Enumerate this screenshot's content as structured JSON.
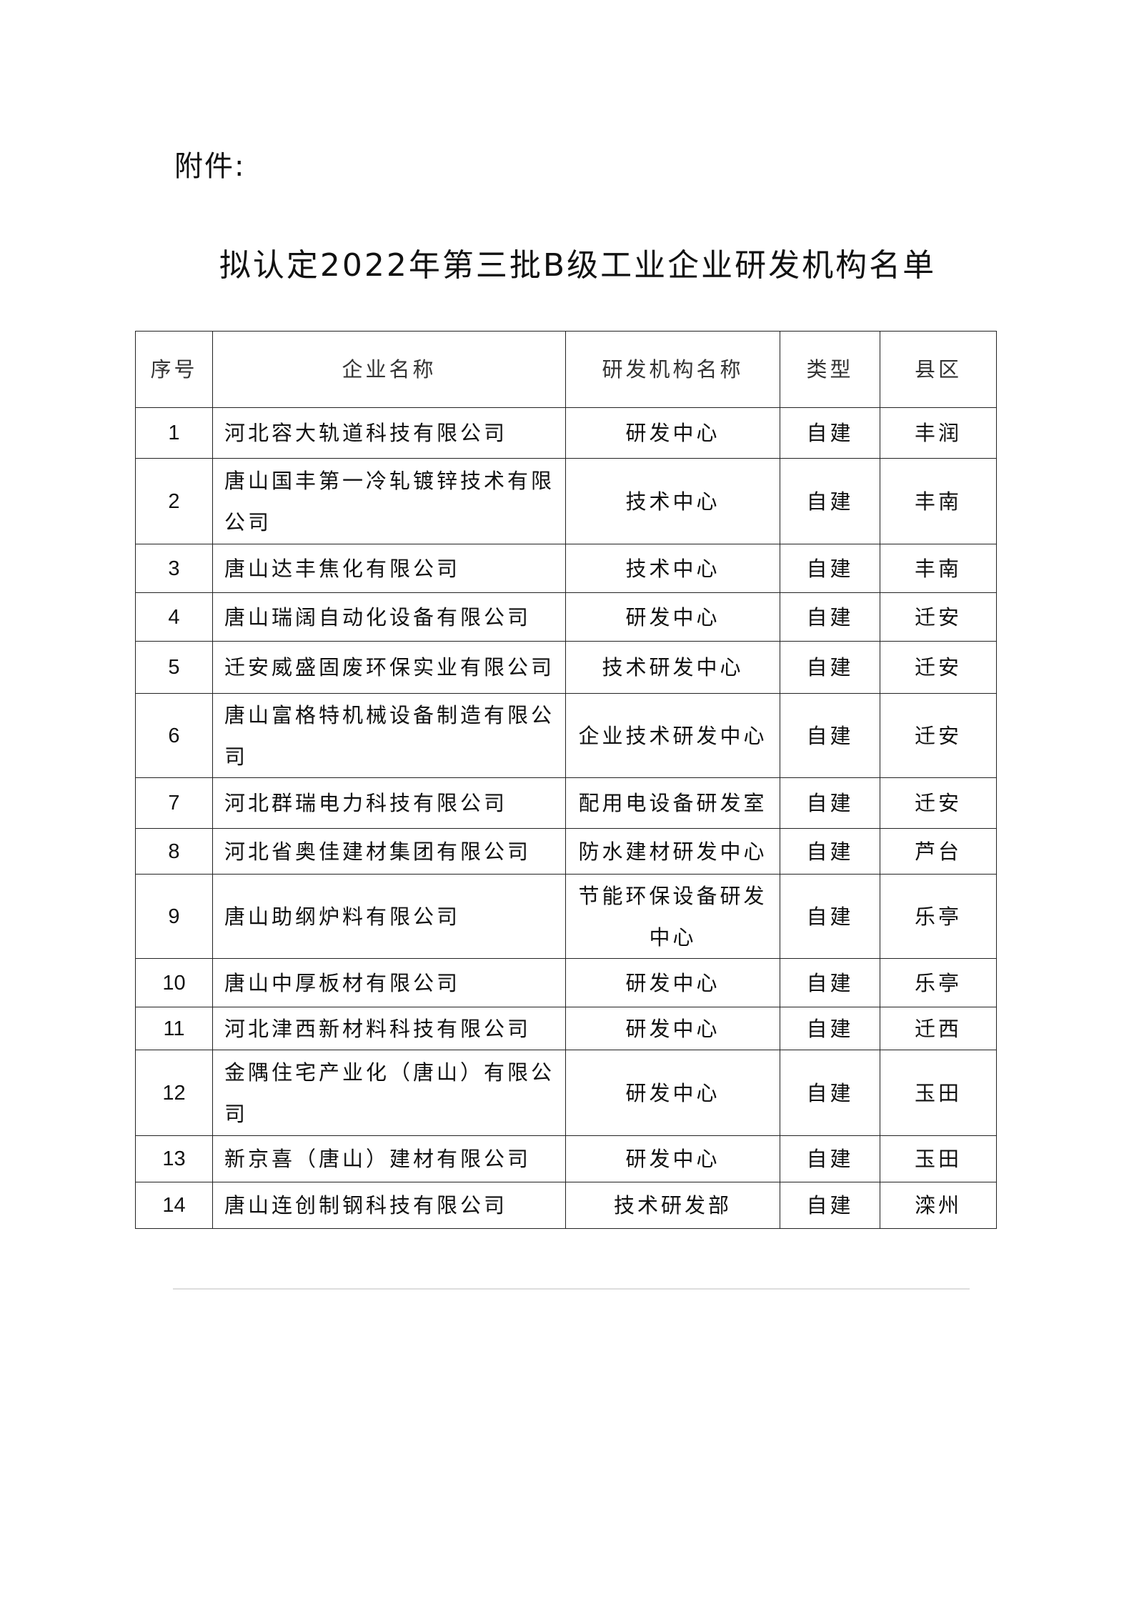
{
  "attachment_label": "附件:",
  "title": "拟认定2022年第三批B级工业企业研发机构名单",
  "table": {
    "headers": [
      "序号",
      "企业名称",
      "研发机构名称",
      "类型",
      "县区"
    ],
    "rows": [
      {
        "no": "1",
        "company": "河北容大轨道科技有限公司",
        "institution": "研发中心",
        "type": "自建",
        "district": "丰润"
      },
      {
        "no": "2",
        "company": "唐山国丰第一冷轧镀锌技术有限公司",
        "institution": "技术中心",
        "type": "自建",
        "district": "丰南"
      },
      {
        "no": "3",
        "company": "唐山达丰焦化有限公司",
        "institution": "技术中心",
        "type": "自建",
        "district": "丰南"
      },
      {
        "no": "4",
        "company": "唐山瑞阔自动化设备有限公司",
        "institution": "研发中心",
        "type": "自建",
        "district": "迁安"
      },
      {
        "no": "5",
        "company": "迁安威盛固废环保实业有限公司",
        "institution": "技术研发中心",
        "type": "自建",
        "district": "迁安"
      },
      {
        "no": "6",
        "company": "唐山富格特机械设备制造有限公司",
        "institution": "企业技术研发中心",
        "type": "自建",
        "district": "迁安"
      },
      {
        "no": "7",
        "company": "河北群瑞电力科技有限公司",
        "institution": "配用电设备研发室",
        "type": "自建",
        "district": "迁安"
      },
      {
        "no": "8",
        "company": "河北省奥佳建材集团有限公司",
        "institution": "防水建材研发中心",
        "type": "自建",
        "district": "芦台"
      },
      {
        "no": "9",
        "company": "唐山助纲炉料有限公司",
        "institution": "节能环保设备研发中心",
        "type": "自建",
        "district": "乐亭"
      },
      {
        "no": "10",
        "company": "唐山中厚板材有限公司",
        "institution": "研发中心",
        "type": "自建",
        "district": "乐亭"
      },
      {
        "no": "11",
        "company": "河北津西新材料科技有限公司",
        "institution": "研发中心",
        "type": "自建",
        "district": "迁西"
      },
      {
        "no": "12",
        "company": "金隅住宅产业化（唐山）有限公司",
        "institution": "研发中心",
        "type": "自建",
        "district": "玉田"
      },
      {
        "no": "13",
        "company": "新京喜（唐山）建材有限公司",
        "institution": "研发中心",
        "type": "自建",
        "district": "玉田"
      },
      {
        "no": "14",
        "company": "唐山连创制钢科技有限公司",
        "institution": "技术研发部",
        "type": "自建",
        "district": "滦州"
      }
    ]
  }
}
